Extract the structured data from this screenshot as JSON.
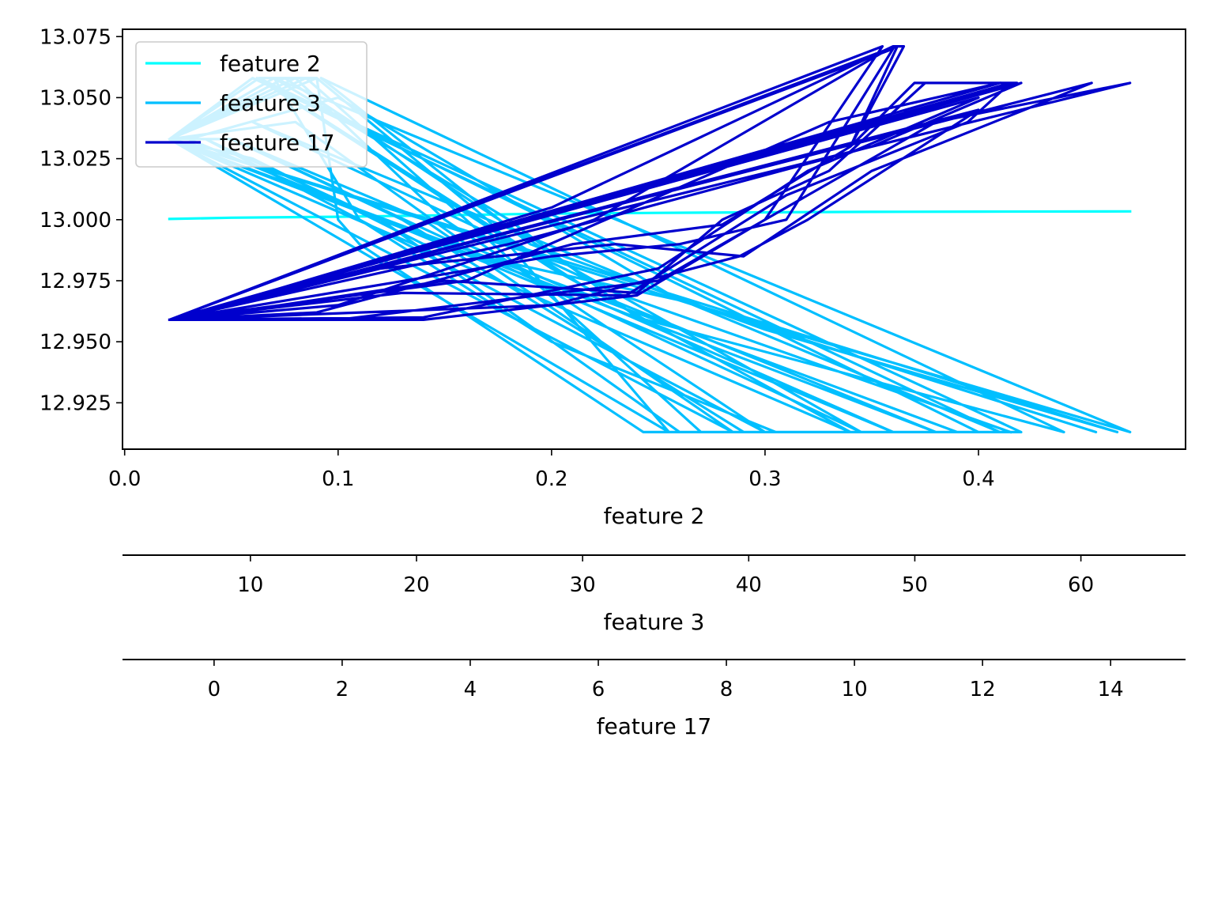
{
  "chart_data": {
    "type": "line",
    "title": "",
    "ylabel": "",
    "ylim": [
      12.906,
      13.078
    ],
    "yticks": [
      12.925,
      12.95,
      12.975,
      13.0,
      13.025,
      13.05,
      13.075
    ],
    "ytick_labels": [
      "12.925",
      "12.950",
      "12.975",
      "13.000",
      "13.025",
      "13.050",
      "13.075"
    ],
    "legend": {
      "placement": "upper-left",
      "entries": [
        "feature 2",
        "feature 3",
        "feature 17"
      ]
    },
    "axes": [
      {
        "name": "x-axis-feature-2",
        "label": "feature 2",
        "lim": [
          -0.001,
          0.497
        ],
        "ticks": [
          0.0,
          0.1,
          0.2,
          0.3,
          0.4
        ],
        "tick_labels": [
          "0.0",
          "0.1",
          "0.2",
          "0.3",
          "0.4"
        ]
      },
      {
        "name": "x-axis-feature-3",
        "label": "feature 3",
        "lim": [
          2.3,
          66.3
        ],
        "ticks": [
          10,
          20,
          30,
          40,
          50,
          60
        ],
        "tick_labels": [
          "10",
          "20",
          "30",
          "40",
          "50",
          "60"
        ]
      },
      {
        "name": "x-axis-feature-17",
        "label": "feature 17",
        "lim": [
          -1.43,
          15.17
        ],
        "ticks": [
          0,
          2,
          4,
          6,
          8,
          10,
          12,
          14
        ],
        "tick_labels": [
          "0",
          "2",
          "4",
          "6",
          "8",
          "10",
          "12",
          "14"
        ]
      }
    ],
    "series": [
      {
        "name": "feature 2",
        "color": "#00ffff",
        "points": [
          [
            0.021,
            13.0003
          ],
          [
            0.05,
            13.0008
          ],
          [
            0.1,
            13.0012
          ],
          [
            0.15,
            13.0018
          ],
          [
            0.2,
            13.0025
          ],
          [
            0.25,
            13.0028
          ],
          [
            0.3,
            13.003
          ],
          [
            0.35,
            13.0032
          ],
          [
            0.4,
            13.0033
          ],
          [
            0.471,
            13.0034
          ]
        ]
      },
      {
        "name": "feature 3",
        "color": "#00bfff",
        "points": [
          [
            0.021,
            13.033
          ],
          [
            0.063,
            13.058
          ],
          [
            0.09,
            13.058
          ],
          [
            0.1,
            13.0
          ],
          [
            0.11,
            12.99
          ],
          [
            0.243,
            12.913
          ],
          [
            0.41,
            12.913
          ],
          [
            0.06,
            13.058
          ],
          [
            0.021,
            13.033
          ],
          [
            0.08,
            13.058
          ],
          [
            0.15,
            13.0
          ],
          [
            0.3,
            12.913
          ],
          [
            0.038,
            13.033
          ],
          [
            0.12,
            13.0
          ],
          [
            0.26,
            12.913
          ],
          [
            0.42,
            12.913
          ],
          [
            0.062,
            13.058
          ],
          [
            0.2,
            12.98
          ],
          [
            0.34,
            12.913
          ],
          [
            0.021,
            13.033
          ],
          [
            0.09,
            13.058
          ],
          [
            0.17,
            13.0
          ],
          [
            0.255,
            12.913
          ],
          [
            0.021,
            13.033
          ],
          [
            0.06,
            13.025
          ],
          [
            0.14,
            12.99
          ],
          [
            0.26,
            12.967
          ],
          [
            0.471,
            12.913
          ],
          [
            0.07,
            13.058
          ],
          [
            0.11,
            13.0
          ],
          [
            0.2,
            12.95
          ],
          [
            0.305,
            12.913
          ],
          [
            0.39,
            12.913
          ],
          [
            0.021,
            13.033
          ],
          [
            0.07,
            13.058
          ],
          [
            0.18,
            13.0
          ],
          [
            0.24,
            12.96
          ],
          [
            0.44,
            12.913
          ],
          [
            0.092,
            13.058
          ],
          [
            0.19,
            12.99
          ],
          [
            0.3,
            12.955
          ],
          [
            0.465,
            12.913
          ],
          [
            0.021,
            13.033
          ],
          [
            0.05,
            13.033
          ],
          [
            0.13,
            13.0
          ],
          [
            0.29,
            12.913
          ],
          [
            0.4,
            12.913
          ],
          [
            0.063,
            13.058
          ],
          [
            0.22,
            12.97
          ],
          [
            0.38,
            12.913
          ],
          [
            0.021,
            13.033
          ],
          [
            0.08,
            13.04
          ],
          [
            0.16,
            12.99
          ],
          [
            0.36,
            12.913
          ],
          [
            0.03,
            13.033
          ],
          [
            0.1,
            13.05
          ],
          [
            0.26,
            12.967
          ],
          [
            0.455,
            12.913
          ],
          [
            0.021,
            13.033
          ],
          [
            0.075,
            13.058
          ],
          [
            0.21,
            12.98
          ],
          [
            0.345,
            12.913
          ],
          [
            0.05,
            13.033
          ],
          [
            0.14,
            13.0
          ],
          [
            0.285,
            12.913
          ],
          [
            0.021,
            13.033
          ],
          [
            0.085,
            13.058
          ],
          [
            0.16,
            13.0
          ],
          [
            0.27,
            12.913
          ],
          [
            0.41,
            12.913
          ],
          [
            0.06,
            13.04
          ],
          [
            0.23,
            12.97
          ],
          [
            0.415,
            12.913
          ]
        ]
      },
      {
        "name": "feature 17",
        "color": "#0000cd",
        "points": [
          [
            0.021,
            12.959
          ],
          [
            0.14,
            12.959
          ],
          [
            0.24,
            12.969
          ],
          [
            0.3,
            13.0
          ],
          [
            0.355,
            13.071
          ],
          [
            0.021,
            12.959
          ],
          [
            0.05,
            12.966
          ],
          [
            0.2,
            13.005
          ],
          [
            0.36,
            13.071
          ],
          [
            0.365,
            13.071
          ],
          [
            0.34,
            13.03
          ],
          [
            0.37,
            13.056
          ],
          [
            0.418,
            13.056
          ],
          [
            0.021,
            12.959
          ],
          [
            0.1,
            12.959
          ],
          [
            0.25,
            12.975
          ],
          [
            0.38,
            13.04
          ],
          [
            0.471,
            13.056
          ],
          [
            0.021,
            12.959
          ],
          [
            0.12,
            12.98
          ],
          [
            0.23,
            12.99
          ],
          [
            0.29,
            12.985
          ],
          [
            0.35,
            13.02
          ],
          [
            0.453,
            13.056
          ],
          [
            0.021,
            12.959
          ],
          [
            0.2,
            12.985
          ],
          [
            0.26,
            12.99
          ],
          [
            0.31,
            13.0
          ],
          [
            0.36,
            13.07
          ],
          [
            0.021,
            12.959
          ],
          [
            0.05,
            12.962
          ],
          [
            0.15,
            12.975
          ],
          [
            0.24,
            12.97
          ],
          [
            0.28,
            13.0
          ],
          [
            0.33,
            13.02
          ],
          [
            0.375,
            13.056
          ],
          [
            0.41,
            13.056
          ],
          [
            0.021,
            12.959
          ],
          [
            0.13,
            12.97
          ],
          [
            0.235,
            12.969
          ],
          [
            0.31,
            13.01
          ],
          [
            0.395,
            13.04
          ],
          [
            0.415,
            13.056
          ],
          [
            0.021,
            12.959
          ],
          [
            0.1,
            12.965
          ],
          [
            0.22,
            13.0
          ],
          [
            0.358,
            13.07
          ],
          [
            0.021,
            12.959
          ],
          [
            0.14,
            12.96
          ],
          [
            0.25,
            12.98
          ],
          [
            0.32,
            13.02
          ],
          [
            0.4,
            13.05
          ],
          [
            0.021,
            12.959
          ],
          [
            0.18,
            12.99
          ],
          [
            0.35,
            13.03
          ],
          [
            0.42,
            13.056
          ],
          [
            0.021,
            12.959
          ],
          [
            0.09,
            12.962
          ],
          [
            0.21,
            12.99
          ],
          [
            0.28,
            12.998
          ],
          [
            0.34,
            13.03
          ],
          [
            0.362,
            13.071
          ],
          [
            0.021,
            12.959
          ],
          [
            0.2,
            12.965
          ],
          [
            0.288,
            12.985
          ],
          [
            0.32,
            13.0
          ],
          [
            0.4,
            13.045
          ],
          [
            0.021,
            12.959
          ],
          [
            0.16,
            12.975
          ],
          [
            0.33,
            13.04
          ],
          [
            0.41,
            13.056
          ]
        ]
      }
    ]
  }
}
